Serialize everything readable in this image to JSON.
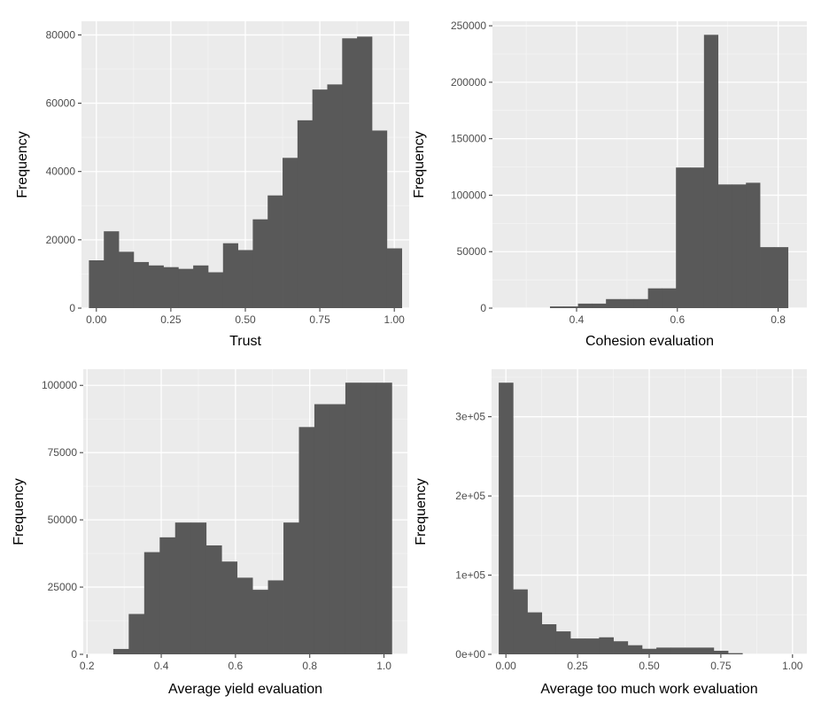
{
  "colors": {
    "panel_background": "#ebebeb",
    "grid_major": "#ffffff",
    "grid_minor": "#f5f5f5",
    "bar_fill": "#595959",
    "tick_text": "#4d4d4d",
    "axis_title_text": "#000000"
  },
  "chart_data": [
    {
      "type": "bar",
      "subtype": "histogram",
      "title": "",
      "xlabel": "Trust",
      "ylabel": "Frequency",
      "xlim": [
        -0.05,
        1.05
      ],
      "ylim": [
        0,
        84000
      ],
      "x_ticks": [
        0.0,
        0.25,
        0.5,
        0.75,
        1.0
      ],
      "x_tick_labels": [
        "0.00",
        "0.25",
        "0.50",
        "0.75",
        "1.00"
      ],
      "y_ticks": [
        0,
        20000,
        40000,
        60000,
        80000
      ],
      "y_tick_labels": [
        "0",
        "20000",
        "40000",
        "60000",
        "80000"
      ],
      "grid": true,
      "bin_width": 0.05,
      "bin_centers": [
        0.0,
        0.05,
        0.1,
        0.15,
        0.2,
        0.25,
        0.3,
        0.35,
        0.4,
        0.45,
        0.5,
        0.55,
        0.6,
        0.65,
        0.7,
        0.75,
        0.8,
        0.85,
        0.9,
        0.95,
        1.0
      ],
      "values": [
        14000,
        22500,
        16500,
        13500,
        12500,
        12000,
        11500,
        12500,
        10500,
        19000,
        17000,
        26000,
        33000,
        44000,
        55000,
        64000,
        65500,
        79000,
        79500,
        52000,
        17500
      ]
    },
    {
      "type": "bar",
      "subtype": "histogram",
      "title": "",
      "xlabel": "Cohesion evaluation",
      "ylabel": "Frequency",
      "xlim": [
        0.233,
        0.857
      ],
      "ylim": [
        0,
        254000
      ],
      "x_ticks": [
        0.4,
        0.6,
        0.8
      ],
      "x_tick_labels": [
        "0.4",
        "0.6",
        "0.8"
      ],
      "y_ticks": [
        0,
        50000,
        100000,
        150000,
        200000,
        250000
      ],
      "y_tick_labels": [
        "0",
        "50000",
        "100000",
        "150000",
        "200000",
        "250000"
      ],
      "grid": true,
      "bin_width": 0.0278,
      "bin_centers": [
        0.3333,
        0.3611,
        0.3889,
        0.4167,
        0.4444,
        0.4722,
        0.5,
        0.5278,
        0.5556,
        0.5833,
        0.6111,
        0.6389,
        0.6667,
        0.6944,
        0.7222,
        0.75,
        0.7778,
        0.8056
      ],
      "values": [
        0,
        1500,
        1500,
        4000,
        4000,
        8000,
        8000,
        8000,
        17500,
        17500,
        124500,
        124500,
        242000,
        109500,
        109500,
        111000,
        54000,
        54000
      ]
    },
    {
      "type": "bar",
      "subtype": "histogram",
      "title": "",
      "xlabel": "Average yield evaluation",
      "ylabel": "Frequency",
      "xlim": [
        0.19,
        1.063
      ],
      "ylim": [
        0,
        106000
      ],
      "x_ticks": [
        0.2,
        0.4,
        0.6,
        0.8,
        1.0
      ],
      "x_tick_labels": [
        "0.2",
        "0.4",
        "0.6",
        "0.8",
        "1.0"
      ],
      "y_ticks": [
        0,
        25000,
        50000,
        75000,
        100000
      ],
      "y_tick_labels": [
        "0",
        "25000",
        "50000",
        "75000",
        "100000"
      ],
      "grid": true,
      "bin_width": 0.0417,
      "bin_centers": [
        0.2917,
        0.3333,
        0.375,
        0.4167,
        0.4583,
        0.5,
        0.5417,
        0.5833,
        0.625,
        0.6667,
        0.7083,
        0.75,
        0.7917,
        0.8333,
        0.875,
        0.9167,
        0.9583,
        1.0
      ],
      "values": [
        2000,
        15000,
        38000,
        43500,
        49000,
        49000,
        40500,
        34500,
        28500,
        24000,
        27500,
        49000,
        84500,
        93000,
        93000,
        101000,
        101000,
        101000
      ]
    },
    {
      "type": "bar",
      "subtype": "histogram",
      "title": "",
      "xlabel": "Average too much work evaluation",
      "ylabel": "Frequency",
      "xlim": [
        -0.05,
        1.05
      ],
      "ylim": [
        0,
        360000
      ],
      "x_ticks": [
        0.0,
        0.25,
        0.5,
        0.75,
        1.0
      ],
      "x_tick_labels": [
        "0.00",
        "0.25",
        "0.50",
        "0.75",
        "1.00"
      ],
      "y_ticks": [
        0,
        100000,
        200000,
        300000
      ],
      "y_tick_labels": [
        "0e+00",
        "1e+05",
        "2e+05",
        "3e+05"
      ],
      "grid": true,
      "bin_width": 0.05,
      "bin_centers": [
        0.0,
        0.05,
        0.1,
        0.15,
        0.2,
        0.25,
        0.3,
        0.35,
        0.4,
        0.45,
        0.5,
        0.55,
        0.6,
        0.65,
        0.7,
        0.75,
        0.8
      ],
      "values": [
        343000,
        82000,
        53000,
        38000,
        29000,
        20000,
        20000,
        21500,
        16500,
        11500,
        7000,
        8500,
        8500,
        8500,
        8500,
        4500,
        1500
      ]
    }
  ]
}
